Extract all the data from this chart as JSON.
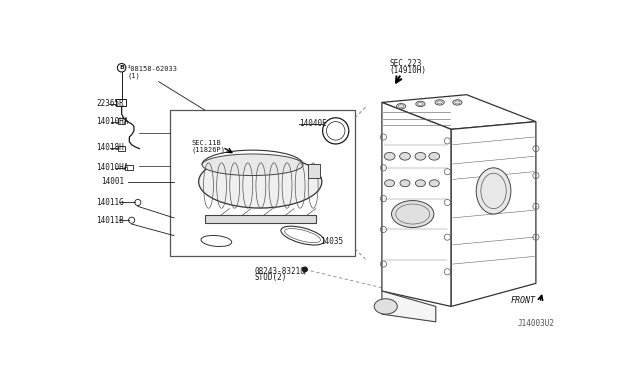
{
  "bg_color": "#ffffff",
  "fig_width": 6.4,
  "fig_height": 3.72,
  "dpi": 100,
  "text_color": "#1a1a1a",
  "line_color": "#1a1a1a",
  "labels": {
    "bolt_top": "³08158-62033",
    "bolt_sub": "(1)",
    "l22365R": "22365R",
    "l14010HA_a": "14010HA",
    "l14018H": "14018H",
    "l14010HA_b": "14010HA",
    "l14001": "14001",
    "l14011G": "14011G",
    "l14011B": "14011B",
    "l14040E": "14040E",
    "sec11b": "SEC.11B",
    "sec11b_sub": "(11826P)",
    "sec223": "SEC.223",
    "sec223_sub": "(14910H)",
    "l14035": "14035",
    "stud_top": "08243-83210",
    "stud_bot": "STUD(2)",
    "front": "FRONT",
    "diagram_id": "J14003U2"
  }
}
